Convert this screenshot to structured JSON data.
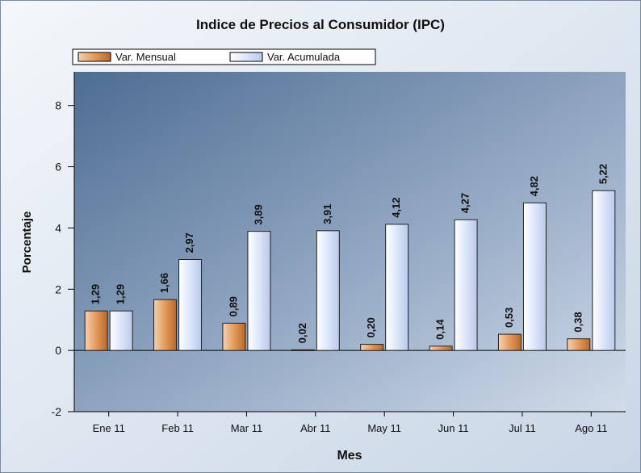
{
  "chart_data": {
    "type": "bar",
    "title": "Indice de Precios al Consumidor (IPC)",
    "x_label": "Mes",
    "y_label": "Porcentaje",
    "categories": [
      "Ene 11",
      "Feb 11",
      "Mar 11",
      "Abr 11",
      "May 11",
      "Jun 11",
      "Jul 11",
      "Ago 11"
    ],
    "series": [
      {
        "name": "Var. Mensual",
        "color": "#e49a5c",
        "values": [
          1.29,
          1.66,
          0.89,
          0.02,
          0.2,
          0.14,
          0.53,
          0.38
        ],
        "value_labels": [
          "1,29",
          "1,66",
          "0,89",
          "0,02",
          "0,20",
          "0,14",
          "0,53",
          "0,38"
        ]
      },
      {
        "name": "Var. Acumulada",
        "color": "#dce6fa",
        "values": [
          1.29,
          2.97,
          3.89,
          3.91,
          4.12,
          4.27,
          4.82,
          5.22
        ],
        "value_labels": [
          "1,29",
          "2,97",
          "3,89",
          "3,91",
          "4,12",
          "4,27",
          "4,82",
          "5,22"
        ]
      }
    ],
    "ylim": [
      -2,
      9.1
    ],
    "yticks": [
      -2,
      0,
      2,
      4,
      6,
      8
    ],
    "legend": "top-left"
  }
}
